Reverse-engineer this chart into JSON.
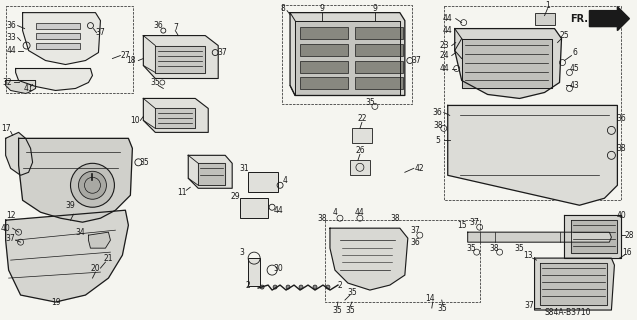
{
  "bg_color": "#f5f5f0",
  "line_color": "#1a1a1a",
  "text_color": "#1a1a1a",
  "font_size": 5.5,
  "diagram_code": "S84A-B3710",
  "labels": {
    "fr": "FR.",
    "top_left_group": [
      "36",
      "33",
      "44",
      "41",
      "32",
      "37",
      "27"
    ],
    "center_left": [
      "7",
      "18",
      "35",
      "37",
      "10",
      "11",
      "35"
    ],
    "center_top": [
      "8",
      "9",
      "9",
      "37",
      "35",
      "22",
      "26",
      "42"
    ],
    "center_bottom": [
      "38",
      "4",
      "44",
      "36",
      "37",
      "29",
      "31",
      "3",
      "30",
      "2",
      "2",
      "35",
      "14",
      "35"
    ],
    "right_group": [
      "1",
      "44",
      "44",
      "23",
      "24",
      "44",
      "25",
      "6",
      "45",
      "43",
      "36",
      "38",
      "5",
      "15",
      "37",
      "35",
      "38",
      "13",
      "37",
      "28",
      "40",
      "16"
    ],
    "left_bottom": [
      "12",
      "40",
      "37",
      "39",
      "34",
      "21",
      "20",
      "19",
      "17"
    ]
  }
}
